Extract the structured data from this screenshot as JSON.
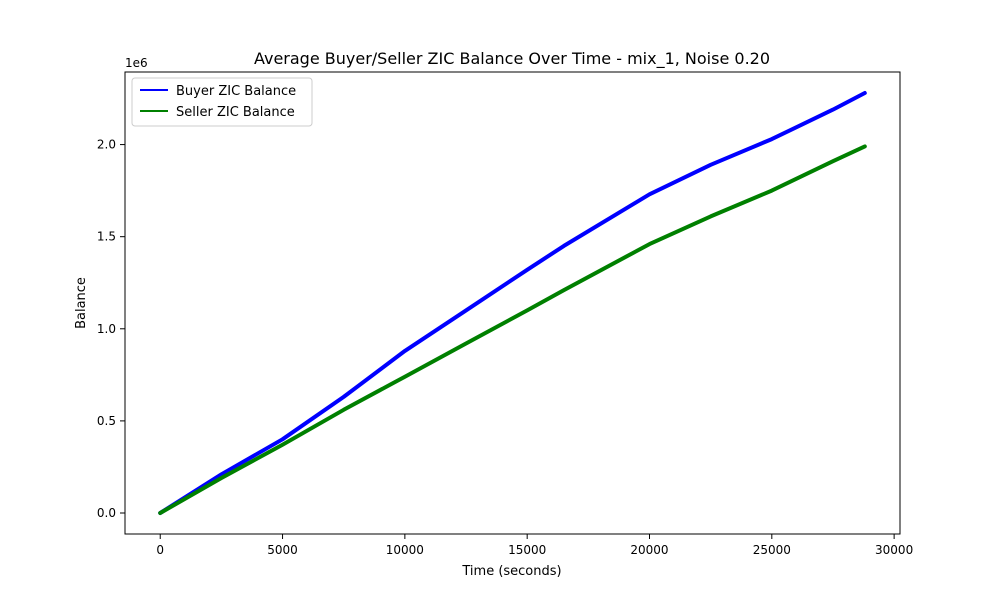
{
  "chart_data": {
    "type": "line",
    "title": "Average Buyer/Seller ZIC Balance Over Time - mix_1, Noise 0.20",
    "xlabel": "Time (seconds)",
    "ylabel": "Balance",
    "y_multiplier_label": "1e6",
    "xlim": [
      -1440,
      30240
    ],
    "ylim": [
      -0.114,
      2.394
    ],
    "x_ticks": [
      0,
      5000,
      10000,
      15000,
      20000,
      25000,
      30000
    ],
    "x_tick_labels": [
      "0",
      "5000",
      "10000",
      "15000",
      "20000",
      "25000",
      "30000"
    ],
    "y_ticks": [
      0.0,
      0.5,
      1.0,
      1.5,
      2.0
    ],
    "y_tick_labels": [
      "0.0",
      "0.5",
      "1.0",
      "1.5",
      "2.0"
    ],
    "grid": false,
    "legend_position": "top-left",
    "series": [
      {
        "name": "Buyer ZIC Balance",
        "color": "#0000ff",
        "x": [
          0,
          2500,
          5000,
          7500,
          10000,
          12500,
          15000,
          16500,
          20000,
          22500,
          25000,
          27500,
          28800
        ],
        "y": [
          0.0,
          0.21,
          0.4,
          0.63,
          0.88,
          1.1,
          1.32,
          1.45,
          1.73,
          1.89,
          2.03,
          2.19,
          2.28
        ]
      },
      {
        "name": "Seller ZIC Balance",
        "color": "#008000",
        "x": [
          0,
          2500,
          5000,
          7500,
          10000,
          12500,
          15000,
          16500,
          20000,
          22500,
          25000,
          27500,
          28800
        ],
        "y": [
          0.0,
          0.19,
          0.37,
          0.56,
          0.74,
          0.92,
          1.1,
          1.21,
          1.46,
          1.61,
          1.75,
          1.91,
          1.99
        ]
      }
    ]
  }
}
